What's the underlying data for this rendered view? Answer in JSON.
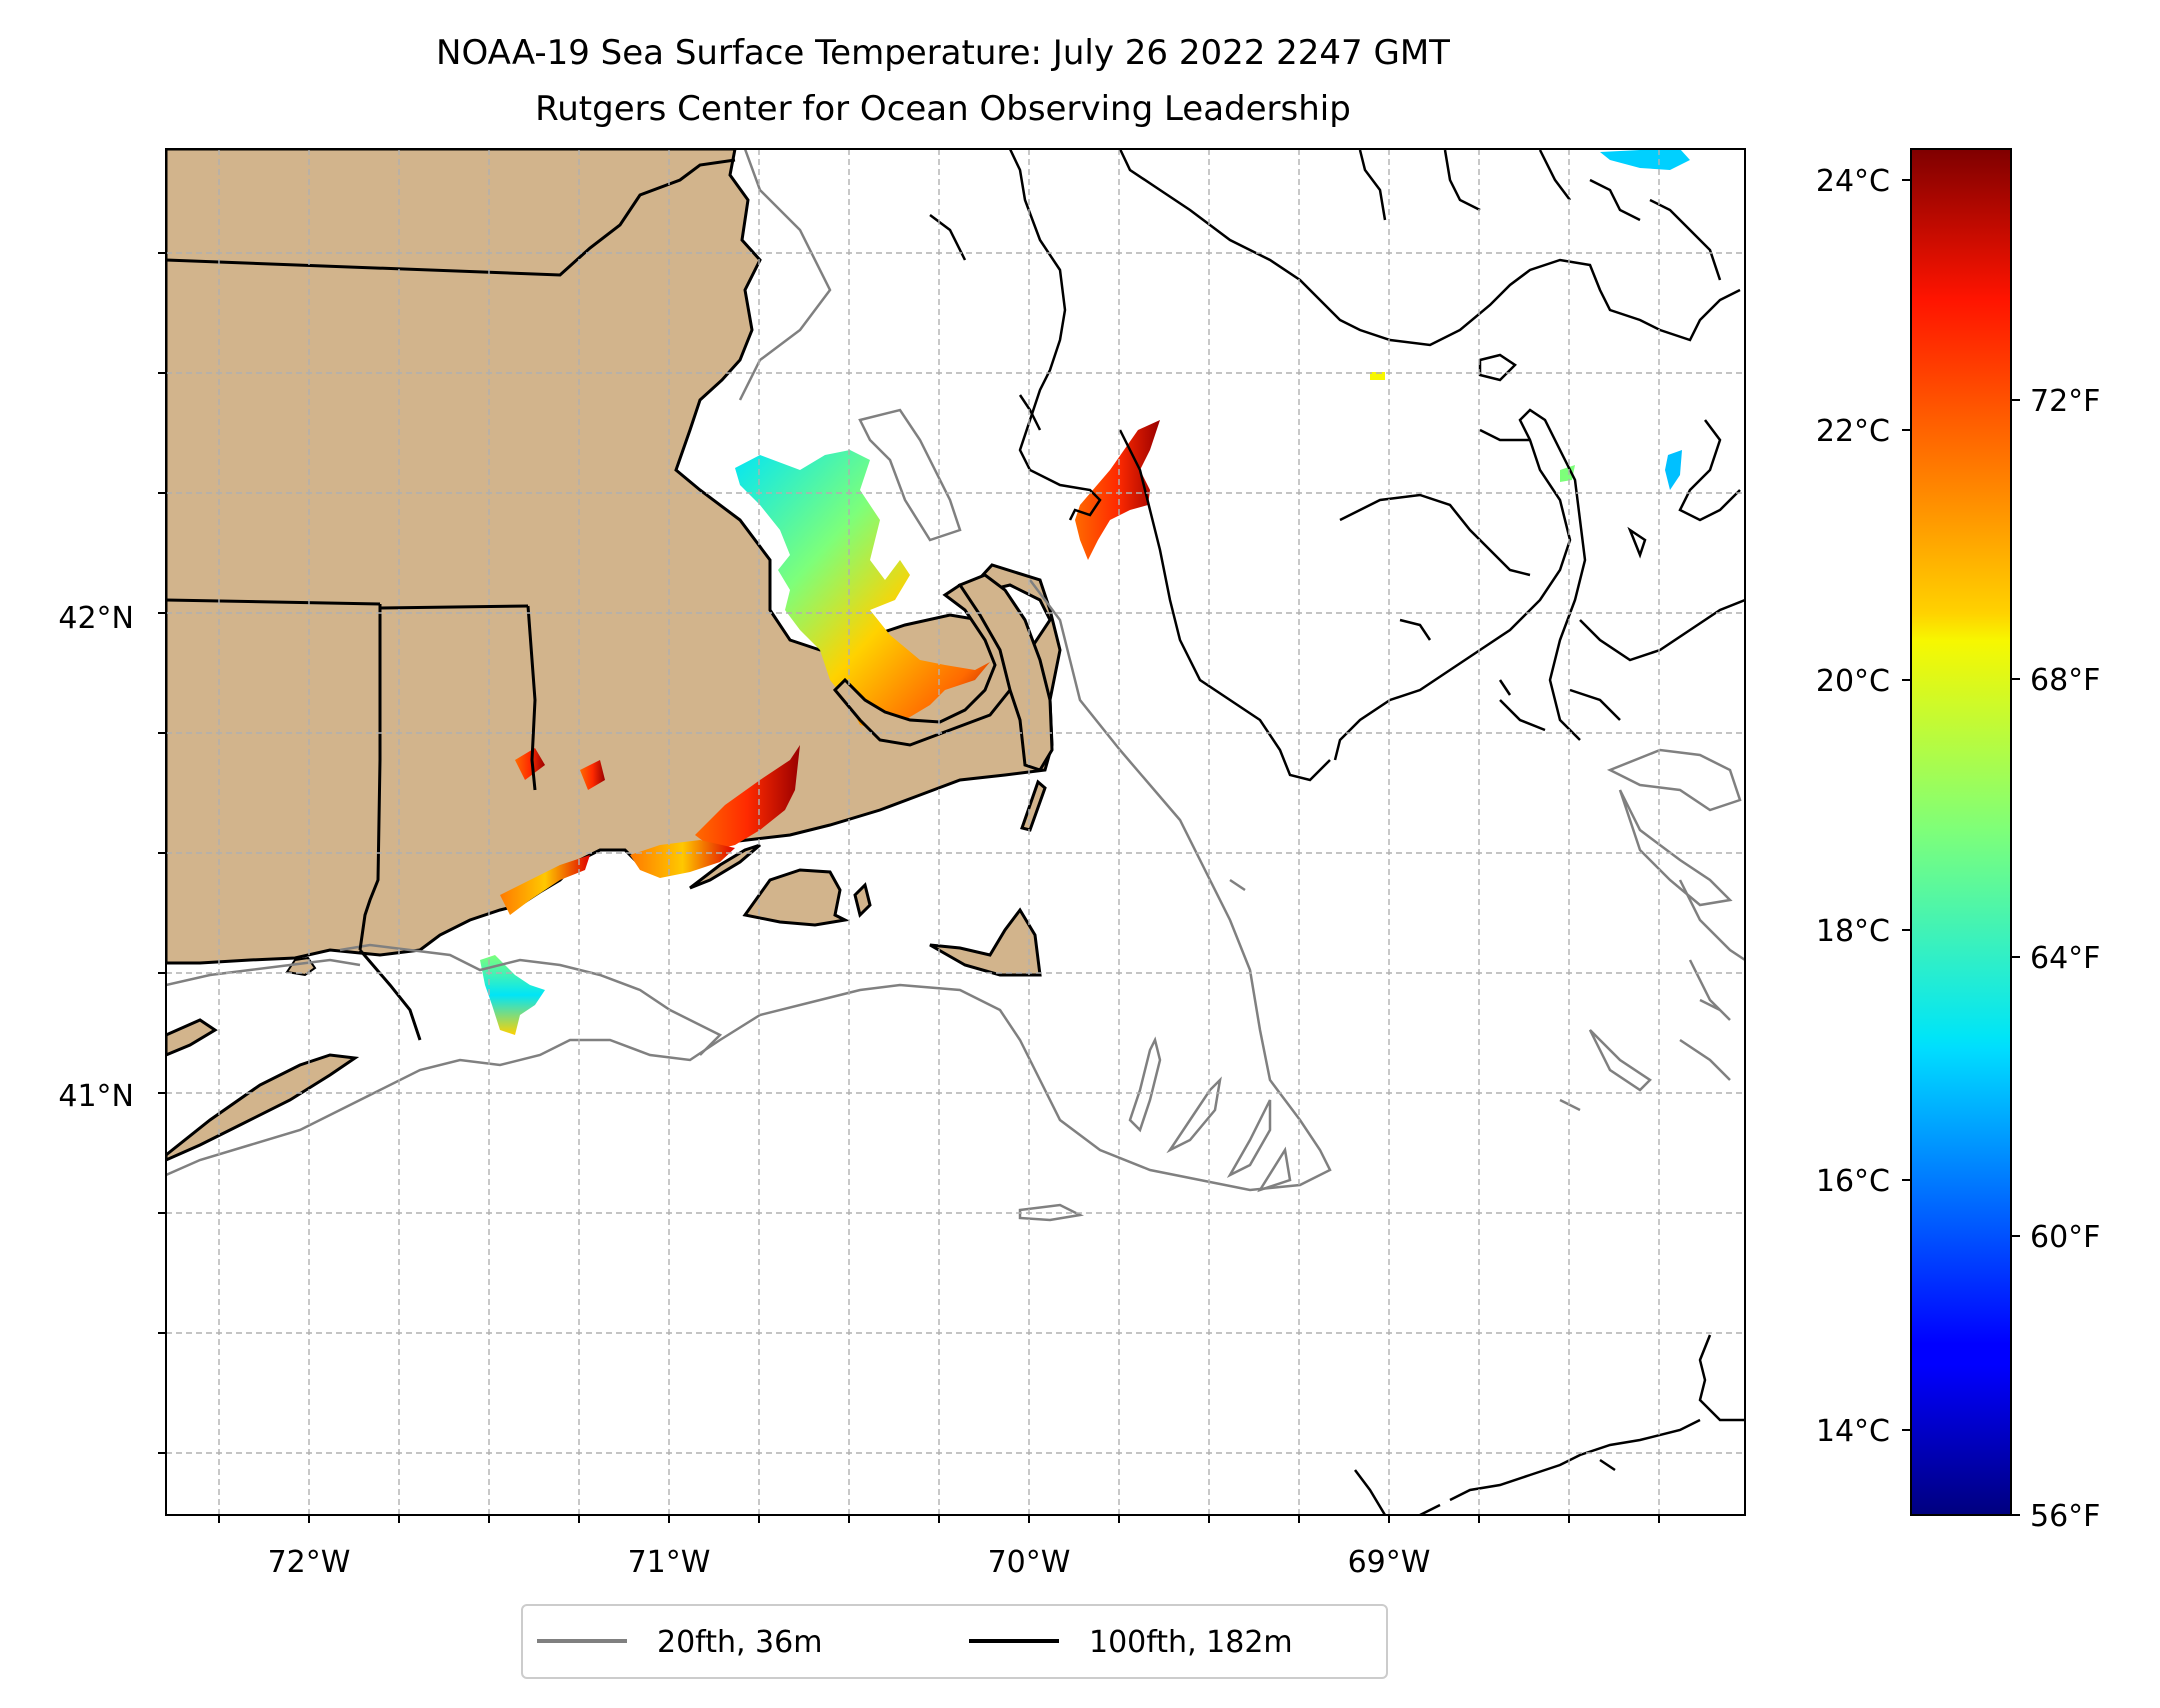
{
  "title": {
    "line1": "NOAA-19 Sea Surface Temperature: July 26 2022 2247 GMT",
    "line2": "Rutgers Center for Ocean Observing Leadership"
  },
  "map": {
    "lon_range": [
      -72.4,
      -68.0
    ],
    "lat_range": [
      40.15,
      43.0
    ],
    "land_color": "#d2b48c",
    "ocean_color": "#ffffff",
    "gridlines": "dashed",
    "x_tick_labels": [
      {
        "lon": -72,
        "label": "72°W"
      },
      {
        "lon": -71,
        "label": "71°W"
      },
      {
        "lon": -70,
        "label": "70°W"
      },
      {
        "lon": -69,
        "label": "69°W"
      }
    ],
    "y_tick_labels": [
      {
        "lat": 42,
        "label": "42°N"
      },
      {
        "lat": 41,
        "label": "41°N"
      }
    ]
  },
  "colorbar": {
    "colormap": "jet",
    "celsius_range": [
      13.3,
      24.3
    ],
    "celsius_ticks": [
      {
        "value": 24,
        "label": "24°C"
      },
      {
        "value": 22,
        "label": "22°C"
      },
      {
        "value": 20,
        "label": "20°C"
      },
      {
        "value": 18,
        "label": "18°C"
      },
      {
        "value": 16,
        "label": "16°C"
      },
      {
        "value": 14,
        "label": "14°C"
      }
    ],
    "fahrenheit_ticks": [
      {
        "value": 72,
        "label": "72°F"
      },
      {
        "value": 68,
        "label": "68°F"
      },
      {
        "value": 64,
        "label": "64°F"
      },
      {
        "value": 60,
        "label": "60°F"
      },
      {
        "value": 56,
        "label": "56°F"
      }
    ]
  },
  "legend": {
    "position": "bottom-center",
    "items": [
      {
        "label": "20fth, 36m",
        "color": "#808080"
      },
      {
        "label": "100fth, 182m",
        "color": "#000000"
      }
    ]
  }
}
